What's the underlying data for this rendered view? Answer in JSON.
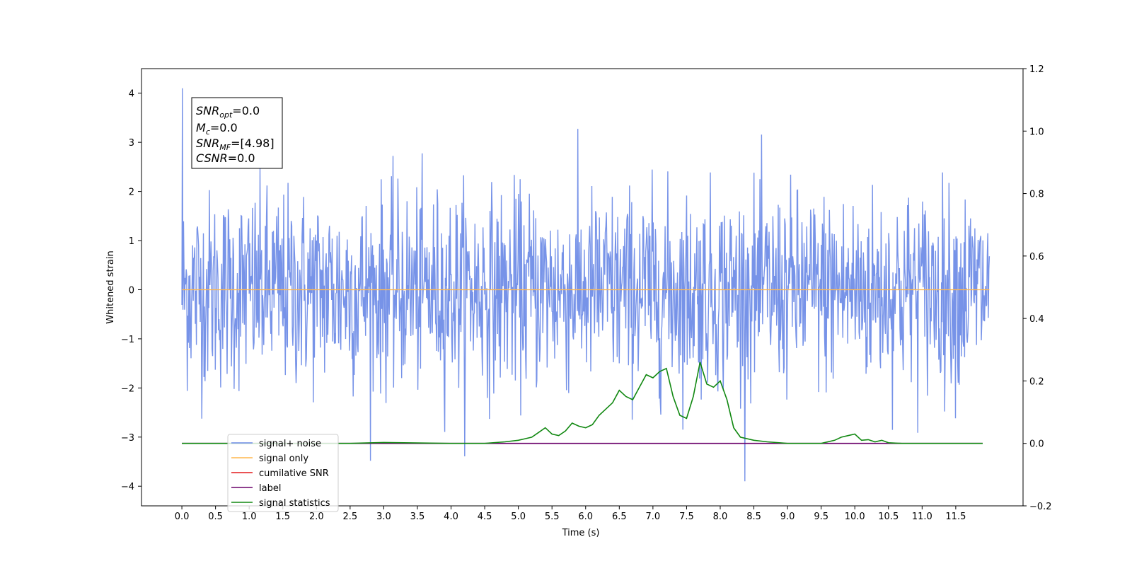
{
  "chart_data": {
    "type": "line",
    "xlabel": "Time (s)",
    "ylabel": "Whitened strain",
    "xlim": [
      -0.6,
      12.5
    ],
    "ylim": [
      -4.4,
      4.5
    ],
    "y2lim": [
      -0.2,
      1.2
    ],
    "x_ticks": [
      0.0,
      0.5,
      1.0,
      1.5,
      2.0,
      2.5,
      3.0,
      3.5,
      4.0,
      4.5,
      5.0,
      5.5,
      6.0,
      6.5,
      7.0,
      7.5,
      8.0,
      8.5,
      9.0,
      9.5,
      10.0,
      10.5,
      11.0,
      11.5
    ],
    "x_tick_labels": [
      "0.0",
      "0.5",
      "1.0",
      "1.5",
      "2.0",
      "2.5",
      "3.0",
      "3.5",
      "4.0",
      "4.5",
      "5.0",
      "5.5",
      "6.0",
      "6.5",
      "7.0",
      "7.5",
      "8.0",
      "8.5",
      "9.0",
      "9.5",
      "10.0",
      "10.5",
      "11.0",
      "11.5"
    ],
    "y_ticks": [
      -4,
      -3,
      -2,
      -1,
      0,
      1,
      2,
      3,
      4
    ],
    "y_tick_labels": [
      "−4",
      "−3",
      "−2",
      "−1",
      "0",
      "1",
      "2",
      "3",
      "4"
    ],
    "y2_ticks": [
      -0.2,
      0.0,
      0.2,
      0.4,
      0.6,
      0.8,
      1.0,
      1.2
    ],
    "y2_tick_labels": [
      "−0.2",
      "0.0",
      "0.2",
      "0.4",
      "0.6",
      "0.8",
      "1.0",
      "1.2"
    ],
    "grid": false,
    "legend_position": "lower-left",
    "series": [
      {
        "name": "signal+ noise",
        "color": "#6b8ae6",
        "axis": "left",
        "x_range": [
          0.0,
          12.0
        ],
        "sample_count": 1500,
        "mean": 0.0,
        "std": 1.0,
        "value_range": [
          -3.9,
          4.1
        ]
      },
      {
        "name": "signal only",
        "color": "#ffb74d",
        "axis": "left",
        "x": [
          0.0,
          12.0
        ],
        "values": [
          0.0,
          0.0
        ]
      },
      {
        "name": "cumilative SNR",
        "color": "#e41a1c",
        "axis": "right",
        "x": [],
        "values": []
      },
      {
        "name": "label",
        "color": "#6a006a",
        "axis": "right",
        "x": [
          0.0,
          11.9
        ],
        "values": [
          0.0,
          0.0
        ]
      },
      {
        "name": "signal statistics",
        "color": "#118811",
        "axis": "right",
        "x": [
          0.0,
          2.5,
          3.0,
          4.0,
          4.5,
          4.8,
          5.0,
          5.1,
          5.2,
          5.3,
          5.4,
          5.5,
          5.6,
          5.7,
          5.8,
          5.9,
          6.0,
          6.1,
          6.2,
          6.3,
          6.4,
          6.5,
          6.6,
          6.7,
          6.8,
          6.9,
          7.0,
          7.1,
          7.2,
          7.3,
          7.4,
          7.5,
          7.6,
          7.7,
          7.8,
          7.9,
          8.0,
          8.1,
          8.2,
          8.3,
          8.5,
          8.7,
          9.0,
          9.5,
          9.7,
          9.8,
          9.9,
          10.0,
          10.1,
          10.2,
          10.3,
          10.4,
          10.5,
          10.7,
          11.0,
          11.5,
          11.9
        ],
        "values": [
          0.0,
          0.0,
          0.003,
          0.0,
          0.0,
          0.005,
          0.01,
          0.015,
          0.02,
          0.035,
          0.05,
          0.03,
          0.025,
          0.04,
          0.065,
          0.055,
          0.05,
          0.06,
          0.09,
          0.11,
          0.13,
          0.17,
          0.15,
          0.14,
          0.18,
          0.22,
          0.21,
          0.23,
          0.24,
          0.15,
          0.09,
          0.08,
          0.15,
          0.26,
          0.19,
          0.18,
          0.2,
          0.14,
          0.05,
          0.02,
          0.01,
          0.005,
          0.0,
          0.0,
          0.01,
          0.02,
          0.025,
          0.03,
          0.01,
          0.012,
          0.005,
          0.01,
          0.002,
          0.0,
          0.0,
          0.0,
          0.0
        ]
      }
    ],
    "annotation": {
      "snr_opt": "=0.0",
      "mc": "=0.0",
      "snr_mf": "=[4.98]",
      "csnr": "=0.0"
    }
  }
}
